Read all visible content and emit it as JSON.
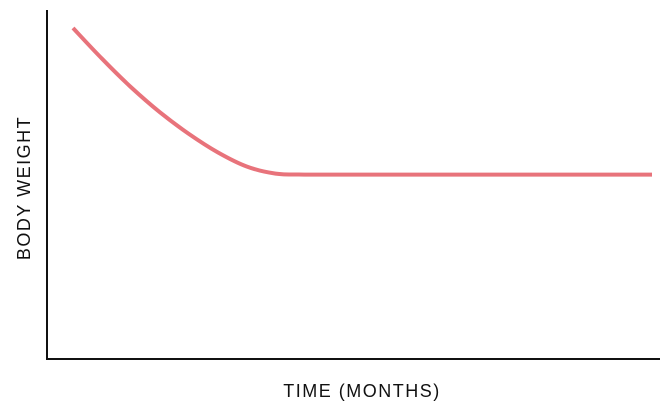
{
  "chart_data": {
    "type": "line",
    "title": "",
    "xlabel": "TIME (MONTHS)",
    "ylabel": "BODY WEIGHT",
    "grid": false,
    "legend": "none",
    "ticks": "none",
    "series": [
      {
        "color": "#e8737b",
        "x": [
          0,
          0.05,
          0.1,
          0.15,
          0.2,
          0.25,
          0.3,
          0.35,
          0.4,
          0.45,
          0.5,
          0.6,
          0.7,
          0.8,
          0.9,
          1.0
        ],
        "y": [
          1.0,
          0.935,
          0.875,
          0.822,
          0.776,
          0.737,
          0.707,
          0.692,
          0.69,
          0.69,
          0.69,
          0.69,
          0.69,
          0.69,
          0.69,
          0.69
        ]
      }
    ],
    "x_range": [
      0,
      1.0
    ],
    "y_range": [
      0.3,
      1.05
    ]
  },
  "colors": {
    "axis": "#111111",
    "line": "#e8737b"
  }
}
